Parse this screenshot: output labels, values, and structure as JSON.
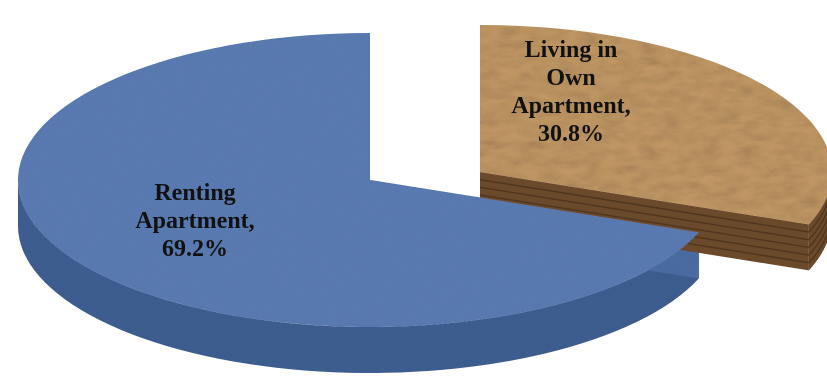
{
  "chart_data": {
    "type": "pie",
    "style": "3d-exploded",
    "slices": [
      {
        "label_lines": [
          "Renting",
          "Apartment,",
          "69.2%"
        ],
        "category": "Renting Apartment",
        "value": 69.2,
        "color": "#5b7db4",
        "side_color": "#3f5f93"
      },
      {
        "label_lines": [
          "Living in",
          "Own",
          "Apartment,",
          "30.8%"
        ],
        "category": "Living in Own Apartment",
        "value": 30.8,
        "color": "#c49a66",
        "side_color": "#6b4a2c",
        "exploded": true
      }
    ],
    "unit": "%"
  }
}
